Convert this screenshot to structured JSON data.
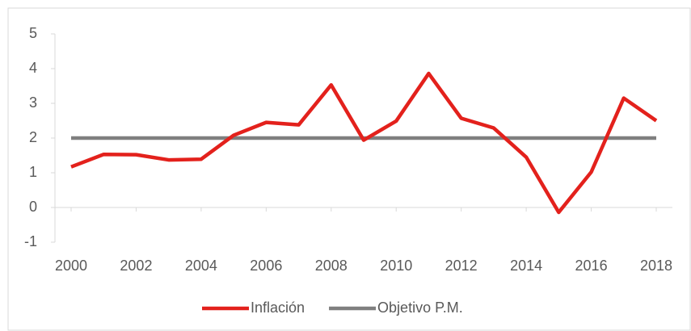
{
  "chart_data": {
    "type": "line",
    "x": [
      2000,
      2001,
      2002,
      2003,
      2004,
      2005,
      2006,
      2007,
      2008,
      2009,
      2010,
      2011,
      2012,
      2013,
      2014,
      2015,
      2016,
      2017,
      2018
    ],
    "series": [
      {
        "name": "Inflación",
        "color": "#e3211c",
        "values": [
          1.17,
          1.53,
          1.52,
          1.37,
          1.39,
          2.08,
          2.45,
          2.38,
          3.53,
          1.94,
          2.49,
          3.86,
          2.57,
          2.29,
          1.45,
          -0.14,
          1.02,
          3.15,
          2.5
        ]
      },
      {
        "name": "Objetivo P.M.",
        "color": "#7f7f7f",
        "values": [
          2,
          2,
          2,
          2,
          2,
          2,
          2,
          2,
          2,
          2,
          2,
          2,
          2,
          2,
          2,
          2,
          2,
          2,
          2
        ]
      }
    ],
    "xlim": [
      2000,
      2018
    ],
    "xticks": [
      2000,
      2002,
      2004,
      2006,
      2008,
      2010,
      2012,
      2014,
      2016,
      2018
    ],
    "ylim": [
      -1,
      5
    ],
    "yticks": [
      -1,
      0,
      1,
      2,
      3,
      4,
      5
    ],
    "legend": "bottom"
  }
}
